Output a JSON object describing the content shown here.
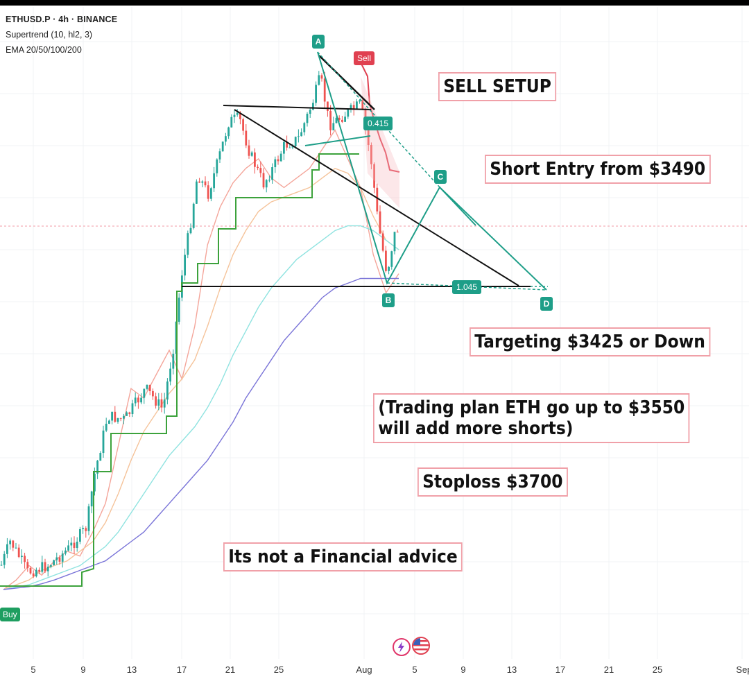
{
  "header": {
    "symbol": "ETHUSD.P · 4h · BINANCE",
    "indicator_supertrend": "Supertrend (10, hl2, 3)",
    "indicator_ema": "EMA 20/50/100/200"
  },
  "annotations": {
    "setup": "SELL SETUP",
    "entry": "Short Entry from $3490",
    "target": "Targeting $3425 or Down",
    "plan_line1": "(Trading plan ETH go up to $3550",
    "plan_line2": "will add more shorts)",
    "stoploss": "Stoploss $3700",
    "disclaimer": "Its not a Financial advice"
  },
  "pattern": {
    "points": [
      "A",
      "B",
      "C",
      "D"
    ],
    "retrace_ac": "0.415",
    "extension_bd": "1.045",
    "sell_signal": "Sell",
    "buy_signal": "Buy"
  },
  "chart_data": {
    "type": "line",
    "title": "",
    "x_tick_labels": [
      "5",
      "9",
      "13",
      "17",
      "21",
      "25",
      "Aug",
      "5",
      "9",
      "13",
      "17",
      "21",
      "25",
      "Sep"
    ],
    "harmonic_pattern": {
      "A": {
        "label": "A"
      },
      "B": {
        "label": "B"
      },
      "C": {
        "label": "C"
      },
      "D": {
        "label": "D"
      },
      "ratios": {
        "AC": 0.415,
        "BD": 1.045
      }
    },
    "levels": {
      "short_entry": 3490,
      "target": 3425,
      "add_shorts": 3550,
      "stoploss": 3700
    },
    "series": [
      {
        "values": [
          0.0,
          0.02,
          0.05,
          0.03,
          0.06,
          0.08,
          0.07,
          0.12,
          0.18,
          0.3,
          0.42,
          0.4,
          0.45,
          0.5,
          0.44,
          0.55,
          0.72,
          0.8,
          0.85,
          0.88,
          0.9,
          0.86,
          0.84,
          0.86,
          0.88,
          0.92,
          0.96,
          0.9,
          0.84,
          0.7,
          0.62,
          0.66
        ]
      },
      {
        "values": [
          0.0,
          0.01,
          0.02,
          0.04,
          0.05,
          0.06,
          0.08,
          0.1,
          0.14,
          0.2,
          0.27,
          0.33,
          0.37,
          0.41,
          0.44,
          0.48,
          0.55,
          0.63,
          0.7,
          0.75,
          0.79,
          0.81,
          0.82,
          0.83,
          0.84,
          0.86,
          0.88,
          0.87,
          0.84,
          0.78,
          0.73,
          0.71
        ]
      },
      {
        "values": [
          0.0,
          0.005,
          0.01,
          0.02,
          0.03,
          0.04,
          0.05,
          0.07,
          0.09,
          0.12,
          0.16,
          0.2,
          0.24,
          0.28,
          0.31,
          0.34,
          0.38,
          0.43,
          0.49,
          0.54,
          0.59,
          0.63,
          0.66,
          0.69,
          0.71,
          0.73,
          0.75,
          0.76,
          0.76,
          0.75,
          0.73,
          0.71
        ]
      },
      {
        "values": [
          0.0,
          0.003,
          0.006,
          0.012,
          0.02,
          0.03,
          0.04,
          0.05,
          0.06,
          0.08,
          0.1,
          0.12,
          0.15,
          0.18,
          0.21,
          0.24,
          0.27,
          0.31,
          0.35,
          0.4,
          0.44,
          0.48,
          0.52,
          0.55,
          0.58,
          0.61,
          0.63,
          0.64,
          0.65,
          0.65,
          0.65,
          0.65
        ]
      }
    ]
  },
  "colors": {
    "candle_up": "#26a69a",
    "candle_down": "#ef5350",
    "supertrend_up": "#3ca23c",
    "supertrend_down": "#e04050",
    "ema20": "#f4a59a",
    "ema50": "#f5c39a",
    "ema100": "#8fe3e0",
    "ema200": "#7a74d8",
    "pattern": "#1e9e88",
    "trendline": "#111111"
  }
}
